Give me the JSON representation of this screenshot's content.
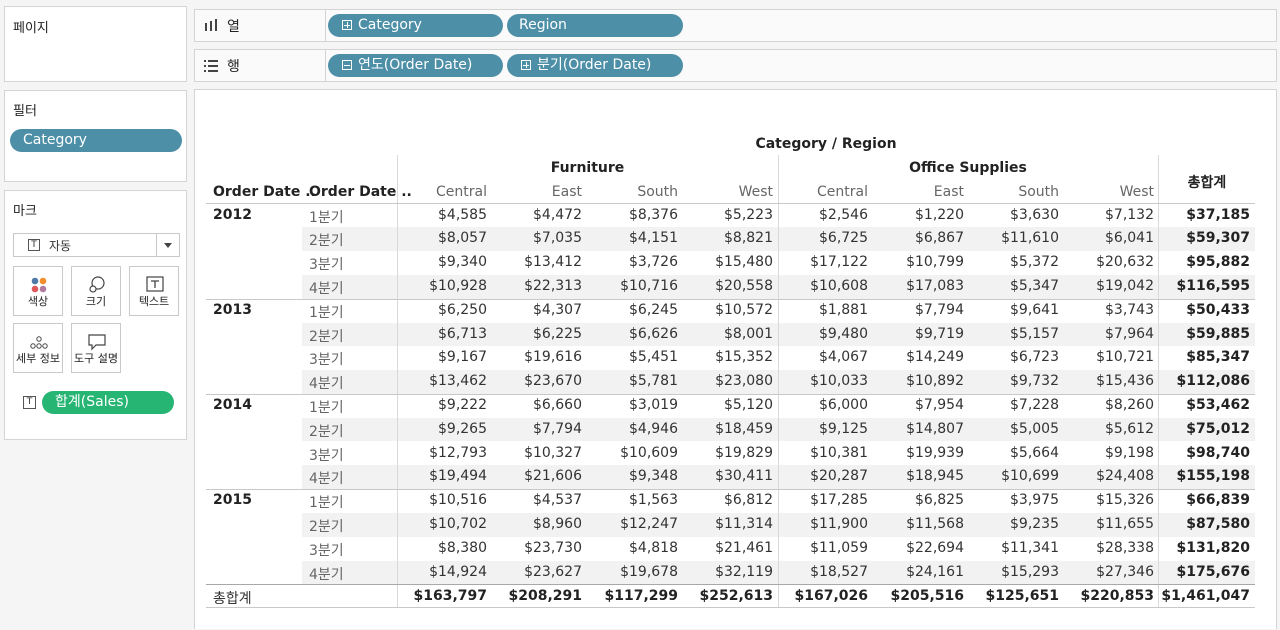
{
  "pages": {
    "title": "페이지"
  },
  "filters": {
    "title": "필터",
    "pill": "Category"
  },
  "marks": {
    "title": "마크",
    "dropdown": "자동",
    "buttons": [
      {
        "label": "색상",
        "icon": "color-icon"
      },
      {
        "label": "크기",
        "icon": "size-icon"
      },
      {
        "label": "텍스트",
        "icon": "text-icon"
      },
      {
        "label": "세부 정보",
        "icon": "detail-icon"
      },
      {
        "label": "도구 설명",
        "icon": "tooltip-icon"
      }
    ],
    "measure_pill": "합계(Sales)"
  },
  "shelves": {
    "columns_label": "열",
    "rows_label": "행",
    "columns_pills": [
      "Category",
      "Region"
    ],
    "rows_pills": [
      "연도(Order Date)",
      "분기(Order Date)"
    ]
  },
  "table": {
    "title": "Category / Region",
    "categories": [
      "Furniture",
      "Office Supplies"
    ],
    "regions": [
      "Central",
      "East",
      "South",
      "West"
    ],
    "row_headers": [
      "Order Date ..",
      "Order Date .."
    ],
    "grand_total_label": "총합계",
    "years": [
      {
        "year": "2012",
        "rows": [
          {
            "q": "1분기",
            "v": [
              "$4,585",
              "$4,472",
              "$8,376",
              "$5,223",
              "$2,546",
              "$1,220",
              "$3,630",
              "$7,132"
            ],
            "t": "$37,185"
          },
          {
            "q": "2분기",
            "v": [
              "$8,057",
              "$7,035",
              "$4,151",
              "$8,821",
              "$6,725",
              "$6,867",
              "$11,610",
              "$6,041"
            ],
            "t": "$59,307"
          },
          {
            "q": "3분기",
            "v": [
              "$9,340",
              "$13,412",
              "$3,726",
              "$15,480",
              "$17,122",
              "$10,799",
              "$5,372",
              "$20,632"
            ],
            "t": "$95,882"
          },
          {
            "q": "4분기",
            "v": [
              "$10,928",
              "$22,313",
              "$10,716",
              "$20,558",
              "$10,608",
              "$17,083",
              "$5,347",
              "$19,042"
            ],
            "t": "$116,595"
          }
        ]
      },
      {
        "year": "2013",
        "rows": [
          {
            "q": "1분기",
            "v": [
              "$6,250",
              "$4,307",
              "$6,245",
              "$10,572",
              "$1,881",
              "$7,794",
              "$9,641",
              "$3,743"
            ],
            "t": "$50,433"
          },
          {
            "q": "2분기",
            "v": [
              "$6,713",
              "$6,225",
              "$6,626",
              "$8,001",
              "$9,480",
              "$9,719",
              "$5,157",
              "$7,964"
            ],
            "t": "$59,885"
          },
          {
            "q": "3분기",
            "v": [
              "$9,167",
              "$19,616",
              "$5,451",
              "$15,352",
              "$4,067",
              "$14,249",
              "$6,723",
              "$10,721"
            ],
            "t": "$85,347"
          },
          {
            "q": "4분기",
            "v": [
              "$13,462",
              "$23,670",
              "$5,781",
              "$23,080",
              "$10,033",
              "$10,892",
              "$9,732",
              "$15,436"
            ],
            "t": "$112,086"
          }
        ]
      },
      {
        "year": "2014",
        "rows": [
          {
            "q": "1분기",
            "v": [
              "$9,222",
              "$6,660",
              "$3,019",
              "$5,120",
              "$6,000",
              "$7,954",
              "$7,228",
              "$8,260"
            ],
            "t": "$53,462"
          },
          {
            "q": "2분기",
            "v": [
              "$9,265",
              "$7,794",
              "$4,946",
              "$18,459",
              "$9,125",
              "$14,807",
              "$5,005",
              "$5,612"
            ],
            "t": "$75,012"
          },
          {
            "q": "3분기",
            "v": [
              "$12,793",
              "$10,327",
              "$10,609",
              "$19,829",
              "$10,381",
              "$19,939",
              "$5,664",
              "$9,198"
            ],
            "t": "$98,740"
          },
          {
            "q": "4분기",
            "v": [
              "$19,494",
              "$21,606",
              "$9,348",
              "$30,411",
              "$20,287",
              "$18,945",
              "$10,699",
              "$24,408"
            ],
            "t": "$155,198"
          }
        ]
      },
      {
        "year": "2015",
        "rows": [
          {
            "q": "1분기",
            "v": [
              "$10,516",
              "$4,537",
              "$1,563",
              "$6,812",
              "$17,285",
              "$6,825",
              "$3,975",
              "$15,326"
            ],
            "t": "$66,839"
          },
          {
            "q": "2분기",
            "v": [
              "$10,702",
              "$8,960",
              "$12,247",
              "$11,314",
              "$11,900",
              "$11,568",
              "$9,235",
              "$11,655"
            ],
            "t": "$87,580"
          },
          {
            "q": "3분기",
            "v": [
              "$8,380",
              "$23,730",
              "$4,818",
              "$21,461",
              "$11,059",
              "$22,694",
              "$11,341",
              "$28,338"
            ],
            "t": "$131,820"
          },
          {
            "q": "4분기",
            "v": [
              "$14,924",
              "$23,627",
              "$19,678",
              "$32,119",
              "$18,527",
              "$24,161",
              "$15,293",
              "$27,346"
            ],
            "t": "$175,676"
          }
        ]
      }
    ],
    "grand_totals": [
      "$163,797",
      "$208,291",
      "$117,299",
      "$252,613",
      "$167,026",
      "$205,516",
      "$125,651",
      "$220,853"
    ],
    "grand_total_all": "$1,461,047"
  },
  "colors": {
    "pill_blue": "#4e8fa8",
    "pill_green": "#26b573"
  }
}
